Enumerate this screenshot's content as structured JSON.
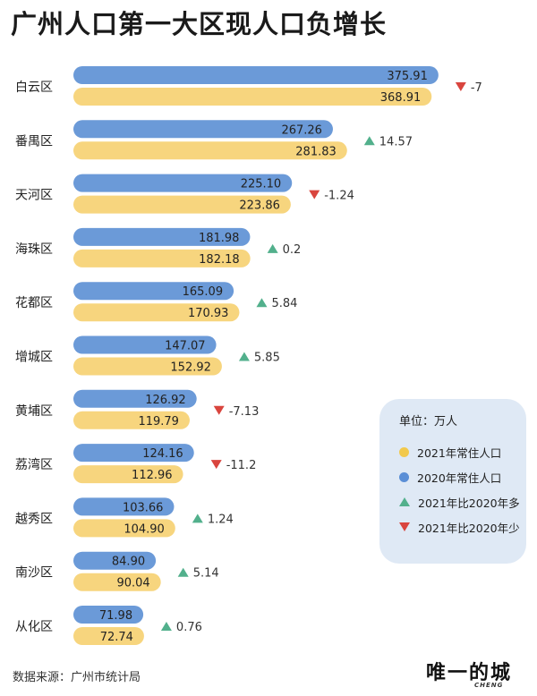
{
  "title": "广州人口第一大区现人口负增长",
  "source": "数据来源：广州市统计局",
  "brand": {
    "name": "唯一的城",
    "sub": "CHENG"
  },
  "legend": {
    "unit": "单位：万人",
    "items": [
      {
        "label": "2021年常住人口",
        "shape": "dot",
        "color": "#f2c94c"
      },
      {
        "label": "2020年常住人口",
        "shape": "dot",
        "color": "#5b8fd6"
      },
      {
        "label": "2021年比2020年多",
        "shape": "triangle-up",
        "color": "#52b08c"
      },
      {
        "label": "2021年比2020年少",
        "shape": "triangle-down",
        "color": "#d9453e"
      }
    ]
  },
  "colors": {
    "bar2020": "#6b9ad8",
    "bar2021": "#f7d57e",
    "increase": "#52b08c",
    "decrease": "#d9453e"
  },
  "chart_data": {
    "type": "bar",
    "categories": [
      "白云区",
      "番禺区",
      "天河区",
      "海珠区",
      "花都区",
      "增城区",
      "黄埔区",
      "荔湾区",
      "越秀区",
      "南沙区",
      "从化区"
    ],
    "series": [
      {
        "name": "2020年常住人口",
        "values": [
          375.91,
          267.26,
          225.1,
          181.98,
          165.09,
          147.07,
          126.92,
          124.16,
          103.66,
          84.9,
          71.98
        ],
        "labels": [
          "375.91",
          "267.26",
          "225.10",
          "181.98",
          "165.09",
          "147.07",
          "126.92",
          "124.16",
          "103.66",
          "84.90",
          "71.98"
        ]
      },
      {
        "name": "2021年常住人口",
        "values": [
          368.91,
          281.83,
          223.86,
          182.18,
          170.93,
          152.92,
          119.79,
          112.96,
          104.9,
          90.04,
          72.74
        ],
        "labels": [
          "368.91",
          "281.83",
          "223.86",
          "182.18",
          "170.93",
          "152.92",
          "119.79",
          "112.96",
          "104.90",
          "90.04",
          "72.74"
        ]
      }
    ],
    "change": [
      -7,
      14.57,
      -1.24,
      0.2,
      5.84,
      5.85,
      -7.13,
      -11.2,
      1.24,
      5.14,
      0.76
    ],
    "change_labels": [
      "-7",
      "14.57",
      "-1.24",
      "0.2",
      "5.84",
      "5.85",
      "-7.13",
      "-11.2",
      "1.24",
      "5.14",
      "0.76"
    ],
    "unit": "万人"
  }
}
